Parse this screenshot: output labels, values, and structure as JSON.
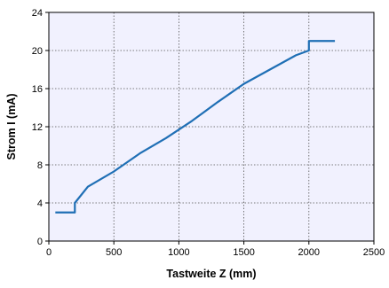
{
  "chart_data": {
    "type": "line",
    "xlabel": "Tastweite Z (mm)",
    "ylabel": "Strom I (mA)",
    "xlim": [
      0,
      2500
    ],
    "ylim": [
      0,
      24
    ],
    "xticks": [
      0,
      500,
      1000,
      1500,
      2000,
      2500
    ],
    "yticks": [
      0,
      4,
      8,
      12,
      16,
      20,
      24
    ],
    "grid": true,
    "legend": "none",
    "plot_background": "#f1f1fe",
    "line_color": "#1f6fb5",
    "series": [
      {
        "x": [
          50,
          200,
          200,
          300,
          500,
          700,
          900,
          1100,
          1300,
          1500,
          1700,
          1900,
          2000,
          2000,
          2200
        ],
        "y": [
          3,
          3,
          4,
          5.7,
          7.3,
          9.2,
          10.8,
          12.6,
          14.6,
          16.5,
          18.0,
          19.5,
          20,
          21,
          21
        ]
      }
    ]
  }
}
